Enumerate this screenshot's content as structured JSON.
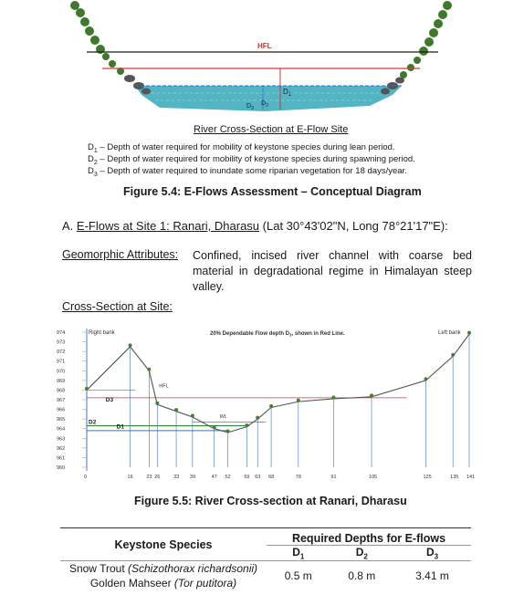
{
  "top_diagram": {
    "hfl_label": "HFL",
    "d1": "D1",
    "d2": "D2",
    "d3": "D3",
    "caption": "River Cross-Section at E-Flow Site",
    "legend": [
      {
        "sym": "D",
        "sub": "1",
        "text": " – Depth of water required for mobility of keystone species during lean period."
      },
      {
        "sym": "D",
        "sub": "2",
        "text": " – Depth of water required for mobility of keystone species during spawning period."
      },
      {
        "sym": "D",
        "sub": "3",
        "text": " – Depth of water required to inundate some riparian vegetation for 18 days/year."
      }
    ]
  },
  "figure_5_4": "Figure 5.4:  E-Flows Assessment – Conceptual Diagram",
  "section": {
    "prefix": "A. ",
    "title": "E-Flows at Site 1: Ranari, Dharasu",
    "coords": " (Lat 30°43'02\"N, Long 78°21'17\"E):"
  },
  "geomorphic": {
    "label": "Geomorphic Attributes:",
    "text": "Confined, incised river channel with coarse bed material in degradational regime in Himalayan steep valley."
  },
  "cross_section_label": "Cross-Section at Site:",
  "chart": {
    "right_bank": "Right bank",
    "left_bank": "Left bank",
    "note": "20% Dependable Flow depth D",
    "note_sub": "3",
    "note_end": ", shown in Red Line.",
    "hfl": "HFL",
    "wl": "WL",
    "d3": "D3",
    "d2": "D2",
    "d1": "D1",
    "y_ticks": [
      "974",
      "973",
      "972",
      "971",
      "970",
      "969",
      "968",
      "967",
      "966",
      "965",
      "964",
      "963",
      "962",
      "961",
      "960"
    ],
    "x_ticks": [
      "0",
      "16",
      "23",
      "26",
      "33",
      "39",
      "47",
      "52",
      "59",
      "63",
      "68",
      "78",
      "91",
      "105",
      "125",
      "135",
      "141"
    ]
  },
  "chart_data": {
    "type": "line",
    "title": "20% Dependable Flow depth D3, shown in Red Line.",
    "xlabel": "",
    "ylabel": "",
    "x": [
      0,
      16,
      23,
      26,
      33,
      39,
      47,
      52,
      59,
      63,
      68,
      78,
      91,
      105,
      125,
      135,
      141
    ],
    "series": [
      {
        "values": [
          968.0,
          972.5,
          970.0,
          966.5,
          965.8,
          965.2,
          964.0,
          963.6,
          964.2,
          965.0,
          966.2,
          966.8,
          967.1,
          967.3,
          969.0,
          971.5,
          973.8
        ]
      }
    ],
    "xlim": [
      0,
      141
    ],
    "ylim": [
      960,
      974
    ],
    "annotations": {
      "hfl": 968,
      "wl": 964.7,
      "d3": 967.2,
      "d2": 964.3,
      "d1": 963.8
    }
  },
  "figure_5_5": "Figure 5.5:  River Cross-section at Ranari, Dharasu",
  "table": {
    "species_header": "Keystone Species",
    "depths_header": "Required Depths for E-flows",
    "d1": "D",
    "d2": "D",
    "d3": "D",
    "rows": [
      {
        "common": "Snow Trout ",
        "latin": "(Schizothorax richardsonii)",
        "d1": "0.5 m",
        "d2": "0.8 m",
        "d3": "3.41 m"
      },
      {
        "common": "Golden Mahseer ",
        "latin": "(Tor putitora)"
      }
    ]
  }
}
